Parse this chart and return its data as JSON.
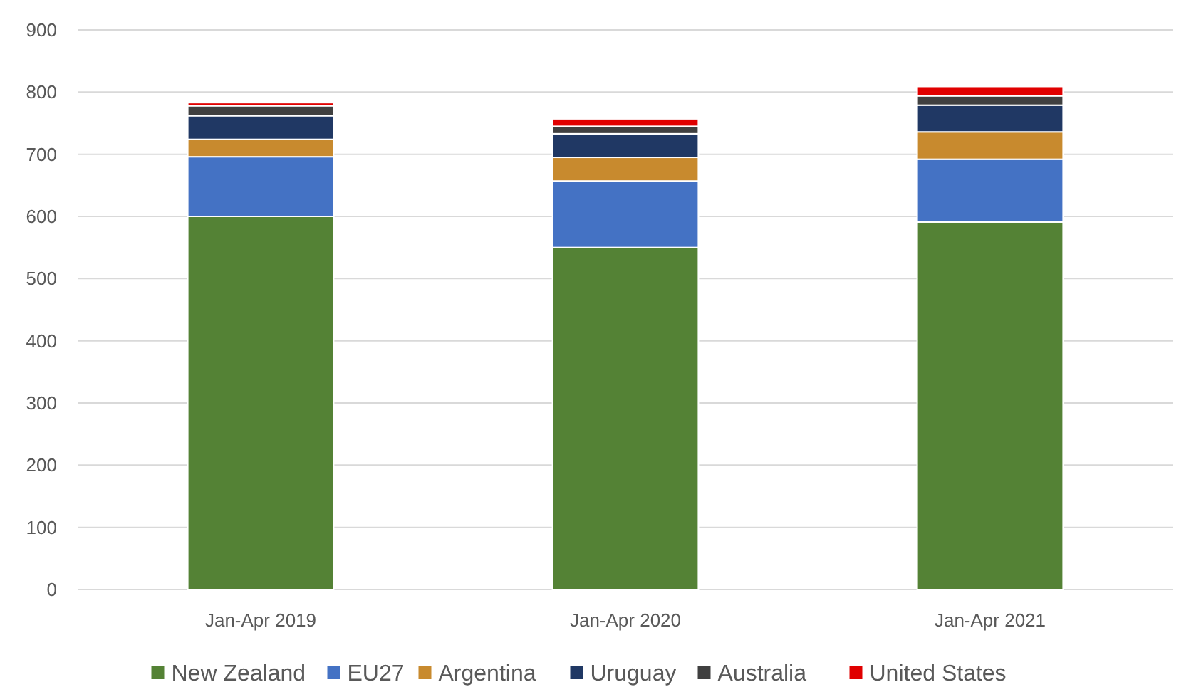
{
  "chart_data": {
    "type": "bar",
    "stacked": true,
    "categories": [
      "Jan-Apr 2019",
      "Jan-Apr 2020",
      "Jan-Apr 2021"
    ],
    "series": [
      {
        "name": "New Zealand",
        "color": "#548235",
        "values": [
          600,
          550,
          591
        ]
      },
      {
        "name": "EU27",
        "color": "#4472c4",
        "values": [
          96,
          107,
          101
        ]
      },
      {
        "name": "Argentina",
        "color": "#c88a2e",
        "values": [
          28,
          38,
          44
        ]
      },
      {
        "name": "Uruguay",
        "color": "#203864",
        "values": [
          38,
          38,
          43
        ]
      },
      {
        "name": "Australia",
        "color": "#404040",
        "values": [
          16,
          12,
          15
        ]
      },
      {
        "name": "United States",
        "color": "#e00000",
        "values": [
          5,
          12,
          15
        ]
      }
    ],
    "ylim": [
      0,
      900
    ],
    "yticks": [
      0,
      100,
      200,
      300,
      400,
      500,
      600,
      700,
      800,
      900
    ],
    "grid": "y",
    "legend": "bottom"
  }
}
